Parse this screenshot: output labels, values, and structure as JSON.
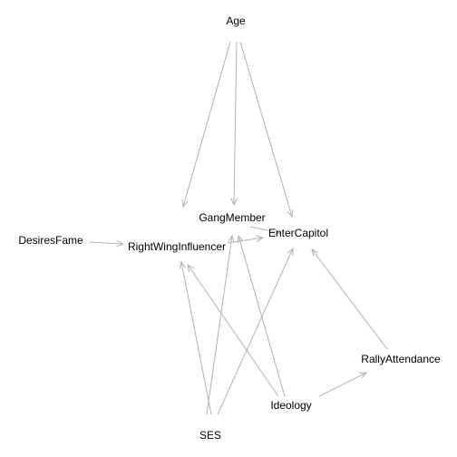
{
  "diagram": {
    "type": "directed-acyclic-graph",
    "nodes": [
      {
        "id": "Age",
        "label": "Age"
      },
      {
        "id": "GangMember",
        "label": "GangMember"
      },
      {
        "id": "EnterCapitol",
        "label": "EnterCapitol"
      },
      {
        "id": "DesiresFame",
        "label": "DesiresFame"
      },
      {
        "id": "RightWingInfluencer",
        "label": "RightWingInfluencer"
      },
      {
        "id": "RallyAttendance",
        "label": "RallyAttendance"
      },
      {
        "id": "Ideology",
        "label": "Ideology"
      },
      {
        "id": "SES",
        "label": "SES"
      }
    ],
    "edges": [
      {
        "from": "Age",
        "to": "RightWingInfluencer"
      },
      {
        "from": "Age",
        "to": "GangMember"
      },
      {
        "from": "Age",
        "to": "EnterCapitol"
      },
      {
        "from": "DesiresFame",
        "to": "RightWingInfluencer"
      },
      {
        "from": "RightWingInfluencer",
        "to": "EnterCapitol"
      },
      {
        "from": "GangMember",
        "to": "EnterCapitol"
      },
      {
        "from": "SES",
        "to": "RightWingInfluencer"
      },
      {
        "from": "SES",
        "to": "GangMember"
      },
      {
        "from": "SES",
        "to": "EnterCapitol"
      },
      {
        "from": "Ideology",
        "to": "RightWingInfluencer"
      },
      {
        "from": "Ideology",
        "to": "GangMember"
      },
      {
        "from": "Ideology",
        "to": "RallyAttendance"
      },
      {
        "from": "RallyAttendance",
        "to": "EnterCapitol"
      }
    ],
    "edge_color": "#b3b3b3",
    "label_color": "#000000",
    "background_color": "#ffffff"
  }
}
